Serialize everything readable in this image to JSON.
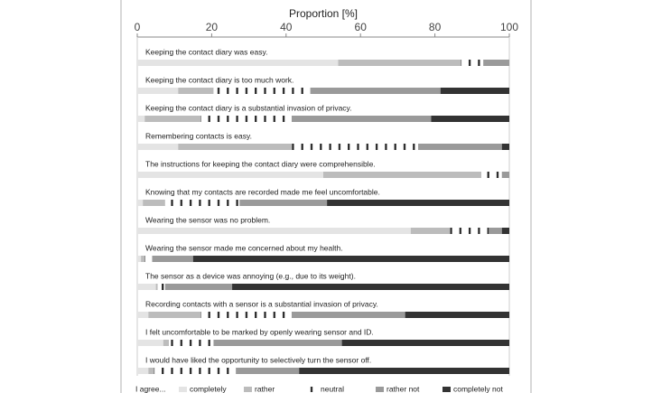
{
  "chart_data": {
    "type": "bar",
    "orientation": "horizontal",
    "stacked": true,
    "x_label": "Proportion [%]",
    "xlim": [
      0,
      100
    ],
    "xticks": [
      0,
      20,
      40,
      60,
      80,
      100
    ],
    "legend_title": "I agree...",
    "categories": [
      "Keeping the contact diary was easy.",
      "Keeping the contact diary is too much work.",
      "Keeping the contact diary is a substantial invasion of privacy.",
      "Remembering contacts is easy.",
      "The instructions for keeping the contact diary were comprehensible.",
      "Knowing that my contacts are recorded made me feel uncomfortable.",
      "Wearing the sensor was no problem.",
      "Wearing the sensor made me concerned about my health.",
      "The sensor as a device was annoying (e.g., due to its weight).",
      "Recording contacts with a sensor is a substantial invasion of privacy.",
      "I felt uncomfortable to be marked by openly wearing sensor and ID.",
      "I would have liked the opportunity to selectively turn the sensor off."
    ],
    "series": [
      {
        "name": "completely",
        "color": "#e4e4e4",
        "values": [
          54,
          11,
          2,
          11,
          50,
          1.5,
          73.5,
          1,
          5,
          3,
          7,
          3
        ]
      },
      {
        "name": "rather",
        "color": "#bcbcbc",
        "values": [
          33,
          9.5,
          15,
          30.5,
          42.5,
          6,
          10.5,
          1,
          0.5,
          14,
          1.5,
          1.5
        ]
      },
      {
        "name": "neutral",
        "color": "#222222",
        "hatch": true,
        "values": [
          6,
          26,
          24.5,
          34,
          5.5,
          20,
          10.5,
          2,
          2,
          24.5,
          12,
          22
        ]
      },
      {
        "name": "rather not",
        "color": "#9a9a9a",
        "values": [
          7,
          35,
          37.5,
          22.5,
          2,
          23.5,
          3.5,
          11,
          18,
          30.5,
          34.5,
          17
        ]
      },
      {
        "name": "completely not",
        "color": "#333333",
        "values": [
          0,
          18.5,
          21,
          2,
          0,
          49,
          2,
          85,
          74.5,
          28,
          45,
          56.5
        ]
      }
    ]
  }
}
